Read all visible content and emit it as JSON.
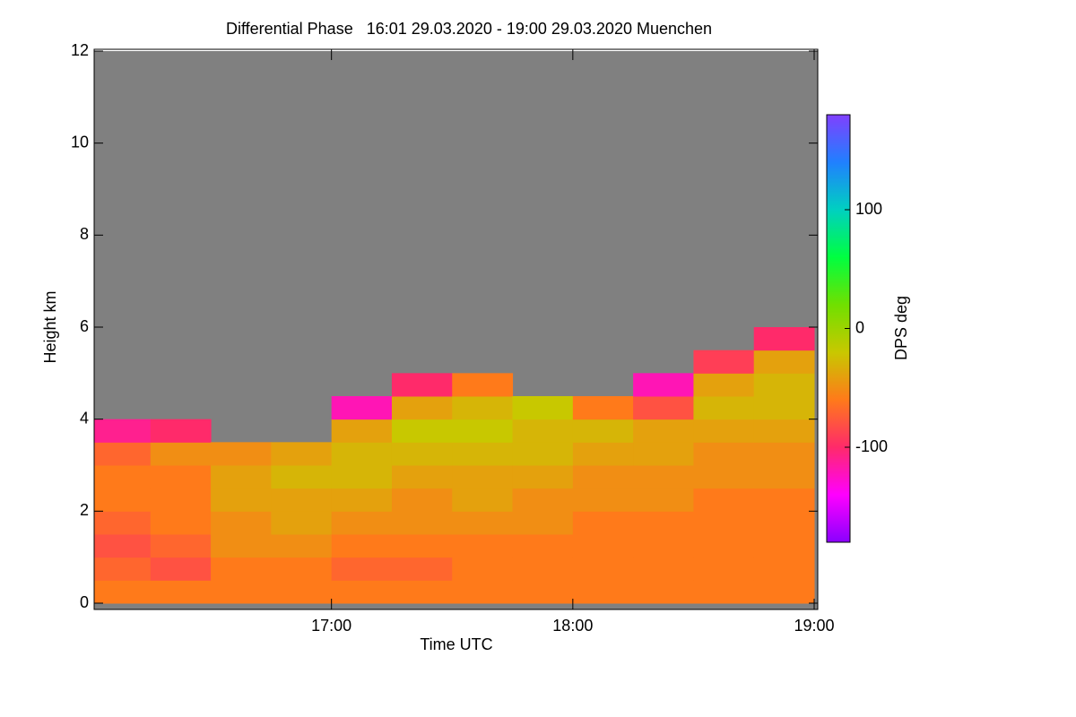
{
  "chart_data": {
    "type": "heatmap",
    "title": "Differential Phase   16:01 29.03.2020 - 19:00 29.03.2020 Muenchen",
    "xlabel": "Time UTC",
    "ylabel": "Height km",
    "colorbar_label": "DPS deg",
    "xlim": [
      16.0167,
      19.0
    ],
    "ylim": [
      0,
      12
    ],
    "xticks": [
      {
        "value": 17,
        "label": "17:00"
      },
      {
        "value": 18,
        "label": "18:00"
      },
      {
        "value": 19,
        "label": "19:00"
      }
    ],
    "yticks": [
      0,
      2,
      4,
      6,
      8,
      10,
      12
    ],
    "clim": [
      -180,
      180
    ],
    "cticks": [
      -100,
      0,
      100
    ],
    "colormap": [
      [
        -180,
        "#8a00ff"
      ],
      [
        -140,
        "#ff00ff"
      ],
      [
        -100,
        "#ff2a6a"
      ],
      [
        -60,
        "#ff7a1a"
      ],
      [
        -20,
        "#c8c800"
      ],
      [
        20,
        "#70e000"
      ],
      [
        60,
        "#00ff40"
      ],
      [
        100,
        "#00d0c0"
      ],
      [
        140,
        "#2080ff"
      ],
      [
        180,
        "#8040ff"
      ]
    ],
    "no_data_color": "#808080",
    "x_edges": [
      16.0167,
      16.25,
      16.5,
      16.75,
      17,
      17.25,
      17.5,
      17.75,
      18,
      18.25,
      18.5,
      18.75,
      19
    ],
    "y_edges": [
      0,
      0.5,
      1,
      1.5,
      2,
      2.5,
      3,
      3.5,
      4,
      4.5,
      5,
      5.5,
      6,
      6.5
    ],
    "z": [
      [
        -60,
        -70,
        -80,
        -70,
        -60,
        -60,
        -70,
        -110,
        null,
        null,
        null,
        null,
        null
      ],
      [
        -60,
        -80,
        -70,
        -60,
        -60,
        -60,
        -50,
        -100,
        null,
        null,
        null,
        null,
        null
      ],
      [
        -60,
        -60,
        -50,
        -50,
        -40,
        -40,
        -50,
        null,
        null,
        null,
        null,
        null,
        null
      ],
      [
        -60,
        -60,
        -50,
        -40,
        -40,
        -30,
        -40,
        null,
        null,
        null,
        null,
        null,
        null
      ],
      [
        -60,
        -70,
        -60,
        -50,
        -40,
        -30,
        -30,
        -40,
        -120,
        null,
        null,
        null,
        null
      ],
      [
        -60,
        -70,
        -60,
        -50,
        -50,
        -40,
        -30,
        -20,
        -40,
        -100,
        null,
        null,
        null
      ],
      [
        -60,
        -60,
        -60,
        -50,
        -40,
        -40,
        -30,
        -20,
        -30,
        -60,
        null,
        null,
        null
      ],
      [
        -60,
        -60,
        -60,
        -50,
        -50,
        -40,
        -30,
        -30,
        -20,
        null,
        null,
        null,
        null
      ],
      [
        -60,
        -60,
        -60,
        -60,
        -50,
        -50,
        -40,
        -30,
        -60,
        null,
        null,
        null,
        null
      ],
      [
        -60,
        -60,
        -60,
        -60,
        -50,
        -50,
        -40,
        -40,
        -80,
        -120,
        null,
        null,
        null
      ],
      [
        -60,
        -60,
        -60,
        -60,
        -60,
        -50,
        -50,
        -40,
        -30,
        -40,
        -90,
        null,
        null
      ],
      [
        -60,
        -60,
        -60,
        -60,
        -60,
        -50,
        -50,
        -40,
        -30,
        -30,
        -40,
        -100,
        null
      ]
    ]
  }
}
